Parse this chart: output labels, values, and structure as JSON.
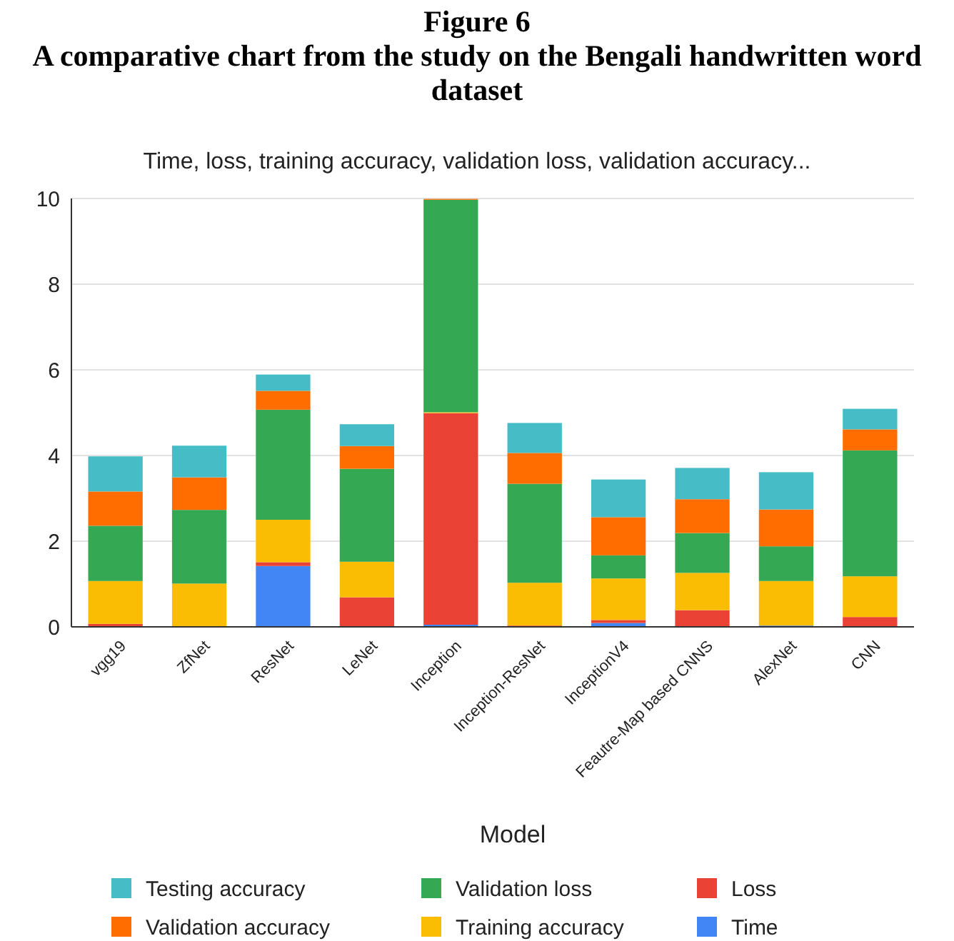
{
  "chart_data": {
    "type": "bar",
    "stacked": true,
    "title": "Time, loss, training accuracy, validation loss, validation accuracy...",
    "annotations": [
      "Figure 6",
      "A comparative chart from the study on the Bengali handwritten word dataset"
    ],
    "xlabel": "Model",
    "categories": [
      "vgg19",
      "ZfNet",
      "ResNet",
      "LeNet",
      "Inception",
      "Inception-ResNet",
      "InceptionV4",
      "Feautre-Map based CNNS",
      "AlexNet",
      "CNN"
    ],
    "series": [
      {
        "name": "Time",
        "color": "#4285f4",
        "values": [
          null,
          0,
          1.42,
          0,
          0.05,
          0,
          0.09,
          0,
          0.03,
          0
        ]
      },
      {
        "name": "Loss",
        "color": "#ea4335",
        "values": [
          0.07,
          null,
          0.09,
          0.69,
          4.94,
          0.03,
          0.07,
          0.39,
          0,
          0.23
        ]
      },
      {
        "name": "Training accuracy",
        "color": "#fbbc04",
        "values": [
          1.0,
          1.01,
          0.99,
          0.83,
          0.02,
          1.0,
          0.97,
          0.87,
          1.04,
          0.95
        ]
      },
      {
        "name": "Validation loss",
        "color": "#34a853",
        "values": [
          1.29,
          1.72,
          2.57,
          2.17,
          4.96,
          2.31,
          0.54,
          0.93,
          0.81,
          2.94
        ]
      },
      {
        "name": "Validation accuracy",
        "color": "#ff6d01",
        "values": [
          0.8,
          0.76,
          0.44,
          0.53,
          0.02,
          0.72,
          0.89,
          0.79,
          0.86,
          0.49
        ]
      },
      {
        "name": "Testing accuracy",
        "color": "#46bdc6",
        "values": [
          0.82,
          0.74,
          0.38,
          0.51,
          0,
          0.7,
          0.88,
          0.73,
          0.87,
          0.48
        ]
      }
    ],
    "ylim": [
      0,
      10
    ],
    "yticks": [
      0,
      2,
      4,
      6,
      8,
      10
    ],
    "grid": "y",
    "legend": "bottom"
  }
}
